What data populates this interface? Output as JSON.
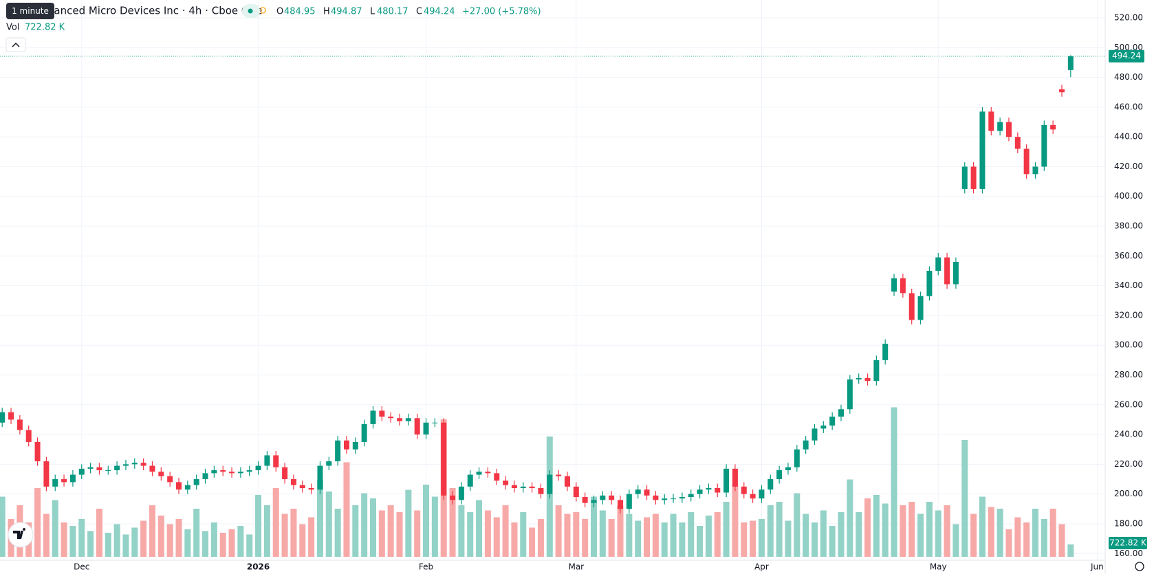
{
  "header": {
    "tooltip": "1 minute",
    "title": "Advanced Micro Devices Inc · 4h · Cboe One",
    "badge": "D",
    "open_label": "O",
    "high_label": "H",
    "low_label": "L",
    "close_label": "C",
    "change": "+27.00 (+5.78%)",
    "volume_label": "Vol",
    "last_volume": "722.82 K"
  },
  "chart_data": {
    "type": "candlestick",
    "categories": [
      null,
      null,
      null,
      null,
      null,
      null,
      null,
      null,
      null,
      "Dec",
      null,
      null,
      null,
      null,
      null,
      null,
      null,
      null,
      null,
      null,
      null,
      null,
      null,
      null,
      null,
      null,
      null,
      null,
      null,
      "2026",
      null,
      null,
      null,
      null,
      null,
      null,
      null,
      null,
      null,
      null,
      null,
      null,
      null,
      null,
      null,
      null,
      null,
      null,
      "Feb",
      null,
      null,
      null,
      null,
      null,
      null,
      null,
      null,
      null,
      null,
      null,
      null,
      null,
      null,
      null,
      null,
      "Mar",
      null,
      null,
      null,
      null,
      null,
      null,
      null,
      null,
      null,
      null,
      null,
      null,
      null,
      null,
      null,
      null,
      null,
      null,
      null,
      null,
      "Apr",
      null,
      null,
      null,
      null,
      null,
      null,
      null,
      null,
      null,
      null,
      null,
      null,
      null,
      null,
      null,
      null,
      null,
      null,
      null,
      "May",
      null,
      null,
      null,
      null,
      null,
      null,
      null,
      null,
      null,
      null,
      null,
      null,
      null,
      null,
      null,
      null,
      null,
      "Jun"
    ],
    "open": [
      248,
      255,
      250,
      243,
      235,
      222,
      205,
      210,
      208,
      213,
      217,
      218,
      216,
      216,
      219,
      220,
      221,
      219,
      215,
      212,
      208,
      203,
      206,
      210,
      214,
      216,
      215,
      214,
      215,
      216,
      219,
      226,
      218,
      210,
      206,
      204,
      203,
      219,
      222,
      236,
      230,
      235,
      247,
      256,
      252,
      251,
      249,
      251,
      240,
      248,
      248,
      199,
      196,
      205,
      213,
      215,
      214,
      209,
      206,
      204,
      205,
      204,
      200,
      213,
      212,
      205,
      198,
      194,
      196,
      199,
      196,
      190,
      200,
      203,
      199,
      196,
      197,
      197,
      198,
      200,
      203,
      204,
      201,
      217,
      205,
      200,
      197,
      203,
      210,
      216,
      218,
      230,
      236,
      244,
      246,
      252,
      257,
      277,
      278,
      276,
      290,
      336,
      345,
      335,
      317,
      333,
      350,
      359,
      341,
      405,
      420,
      405,
      457,
      444,
      450,
      440,
      432,
      415,
      420,
      448,
      472,
      484.95,
      null,
      null,
      null
    ],
    "high": [
      258,
      258,
      253,
      246,
      238,
      225,
      213,
      213,
      216,
      220,
      221,
      221,
      219,
      222,
      223,
      224,
      224,
      222,
      218,
      215,
      211,
      209,
      213,
      217,
      219,
      219,
      218,
      218,
      219,
      222,
      229,
      229,
      221,
      213,
      209,
      207,
      222,
      225,
      239,
      239,
      238,
      250,
      259,
      259,
      255,
      254,
      254,
      254,
      251,
      251,
      251,
      202,
      208,
      216,
      218,
      218,
      217,
      212,
      209,
      208,
      208,
      207,
      216,
      216,
      215,
      208,
      201,
      199,
      202,
      202,
      199,
      203,
      206,
      206,
      202,
      200,
      200,
      201,
      203,
      206,
      207,
      207,
      220,
      220,
      208,
      203,
      206,
      213,
      219,
      221,
      233,
      239,
      247,
      249,
      255,
      260,
      280,
      281,
      281,
      293,
      304,
      348,
      348,
      338,
      336,
      353,
      362,
      362,
      359,
      423,
      423,
      460,
      460,
      453,
      453,
      443,
      435,
      423,
      451,
      451,
      475,
      494.87,
      null,
      null,
      null
    ],
    "low": [
      245,
      247,
      240,
      232,
      219,
      202,
      202,
      205,
      205,
      210,
      214,
      213,
      213,
      213,
      216,
      217,
      216,
      212,
      209,
      205,
      200,
      200,
      203,
      207,
      211,
      212,
      211,
      211,
      212,
      213,
      216,
      215,
      207,
      203,
      201,
      200,
      200,
      216,
      219,
      227,
      227,
      232,
      244,
      249,
      248,
      246,
      246,
      237,
      237,
      245,
      196,
      193,
      193,
      202,
      210,
      211,
      206,
      203,
      201,
      201,
      201,
      197,
      197,
      209,
      202,
      195,
      191,
      191,
      193,
      193,
      187,
      187,
      197,
      196,
      193,
      193,
      194,
      194,
      195,
      197,
      200,
      198,
      198,
      202,
      197,
      194,
      194,
      200,
      207,
      213,
      215,
      227,
      233,
      241,
      243,
      249,
      254,
      274,
      273,
      273,
      287,
      333,
      332,
      314,
      314,
      330,
      347,
      338,
      338,
      402,
      402,
      402,
      441,
      441,
      437,
      429,
      412,
      412,
      417,
      442,
      467,
      480.17,
      null,
      null,
      null
    ],
    "close": [
      255,
      250,
      243,
      235,
      222,
      205,
      210,
      208,
      213,
      217,
      218,
      216,
      216,
      219,
      220,
      221,
      219,
      215,
      212,
      208,
      203,
      206,
      210,
      214,
      216,
      215,
      214,
      215,
      216,
      219,
      226,
      218,
      210,
      206,
      204,
      203,
      219,
      222,
      236,
      230,
      235,
      247,
      256,
      252,
      251,
      249,
      251,
      240,
      248,
      248,
      199,
      196,
      205,
      213,
      215,
      214,
      209,
      206,
      204,
      205,
      204,
      200,
      213,
      212,
      205,
      198,
      194,
      196,
      199,
      196,
      190,
      200,
      203,
      199,
      196,
      197,
      197,
      198,
      200,
      203,
      204,
      201,
      217,
      205,
      200,
      197,
      203,
      210,
      216,
      218,
      230,
      236,
      244,
      246,
      252,
      257,
      277,
      278,
      276,
      290,
      301,
      345,
      335,
      317,
      333,
      350,
      359,
      341,
      356,
      420,
      405,
      457,
      444,
      450,
      440,
      432,
      415,
      420,
      448,
      445,
      470,
      494.24,
      null,
      null,
      null
    ],
    "volume": [
      3500,
      2200,
      3000,
      2000,
      4000,
      2500,
      3300,
      2000,
      1800,
      2200,
      1500,
      2800,
      1400,
      1900,
      1300,
      1700,
      2100,
      3000,
      2400,
      1900,
      2200,
      1600,
      2800,
      1500,
      2000,
      1400,
      1600,
      1800,
      1300,
      3600,
      3000,
      4000,
      2500,
      2800,
      1900,
      2300,
      4500,
      3800,
      2800,
      5500,
      3000,
      3700,
      3400,
      2700,
      3000,
      2600,
      3900,
      2700,
      4200,
      3500,
      8000,
      4000,
      3000,
      2600,
      3300,
      2700,
      2300,
      3000,
      2000,
      2600,
      1700,
      2200,
      7000,
      3000,
      2500,
      2600,
      2200,
      3500,
      2700,
      2200,
      3000,
      2500,
      2100,
      2300,
      2500,
      2000,
      2500,
      2000,
      2600,
      1800,
      2400,
      2600,
      3200,
      4200,
      2000,
      2100,
      2200,
      3000,
      3200,
      2100,
      3700,
      2500,
      2000,
      2700,
      1800,
      2600,
      4500,
      2600,
      3400,
      3600,
      3100,
      8700,
      3000,
      3200,
      2500,
      3200,
      2700,
      3000,
      1900,
      6800,
      2500,
      3500,
      2900,
      2800,
      1600,
      2300,
      2000,
      2800,
      2200,
      2800,
      1900,
      722.82,
      null,
      null,
      null
    ],
    "volume_ylim": [
      0,
      10000
    ],
    "ylim": [
      155.5,
      532
    ],
    "yticks": [
      {
        "value": 160,
        "label": "160.00"
      },
      {
        "value": 180,
        "label": "180.00"
      },
      {
        "value": 200,
        "label": "200.00"
      },
      {
        "value": 220,
        "label": "220.00"
      },
      {
        "value": 240,
        "label": "240.00"
      },
      {
        "value": 260,
        "label": "260.00"
      },
      {
        "value": 280,
        "label": "280.00"
      },
      {
        "value": 300,
        "label": "300.00"
      },
      {
        "value": 320,
        "label": "320.00"
      },
      {
        "value": 340,
        "label": "340.00"
      },
      {
        "value": 360,
        "label": "360.00"
      },
      {
        "value": 380,
        "label": "380.00"
      },
      {
        "value": 400,
        "label": "400.00"
      },
      {
        "value": 420,
        "label": "420.00"
      },
      {
        "value": 440,
        "label": "440.00"
      },
      {
        "value": 460,
        "label": "460.00"
      },
      {
        "value": 480,
        "label": "480.00"
      },
      {
        "value": 500,
        "label": "500.00"
      },
      {
        "value": 520,
        "label": "520.00"
      }
    ],
    "grid": true,
    "colors": {
      "up": "#089981",
      "down": "#f23645",
      "up_volume": "#93d2c7",
      "down_volume": "#f7a9a7"
    }
  }
}
